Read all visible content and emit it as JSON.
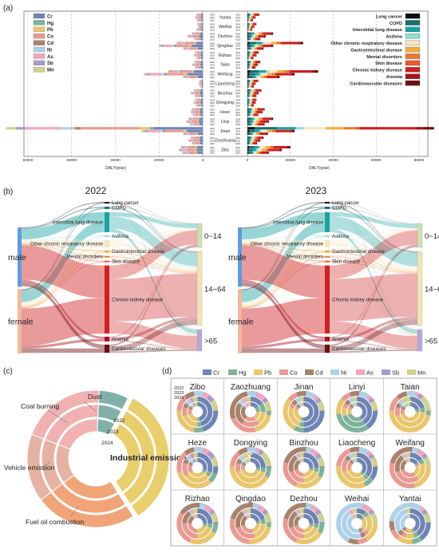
{
  "panels": {
    "a": "(a)",
    "b": "(b)",
    "c": "(c)",
    "d": "(d)"
  },
  "palette": {
    "metals": {
      "Cr": "#6f84b6",
      "Hg": "#7fb29a",
      "Pb": "#e9c56b",
      "Co": "#ea9a92",
      "Cd": "#a8826b",
      "Ni": "#aed1ea",
      "As": "#f2a6bd",
      "Sb": "#a99cc8",
      "Mn": "#cfd18e"
    },
    "diseases": {
      "Lung cancer": "#0c0c0c",
      "COPD": "#1a6f73",
      "Interstitial lung disease": "#1aa3a3",
      "Asthma": "#8fdcd2",
      "Other chronic respiratory disease": "#f3e6c4",
      "Gastrointestinal disease": "#f2ad3d",
      "Mental disorders": "#e77a2e",
      "Skin disease": "#e85a2b",
      "Chronic kidney disease": "#cf2020",
      "Anemia": "#a8101a",
      "Cardiovascular diseases": "#6e0f12"
    }
  },
  "chart_data": [
    {
      "id": "a",
      "type": "bar",
      "orientation": "horizontal",
      "xlabel_left": "DALY(year)",
      "xlabel_right": "DALY(year)",
      "left_ticks": [
        "80000",
        "60000",
        "40000",
        "20000",
        "0"
      ],
      "right_ticks": [
        "0",
        "20000",
        "40000",
        "60000",
        "80000"
      ],
      "xlim": [
        0,
        80000
      ],
      "years": [
        "2024",
        "2023",
        "2022"
      ],
      "cities": [
        "Yantai",
        "Weihai",
        "Dezhou",
        "Qingdao",
        "Rizhao",
        "Taian",
        "Weifang",
        "Liaocheng",
        "Binzhou",
        "Dongying",
        "Heze",
        "Linyi",
        "Jinan",
        "Zaozhuang",
        "Zibo"
      ],
      "legend_left": [
        "Cr",
        "Hg",
        "Pb",
        "Co",
        "Cd",
        "Ni",
        "As",
        "Sb",
        "Mn"
      ],
      "legend_right": [
        "Lung cancer",
        "COPD",
        "Interstitial lung disease",
        "Asthma",
        "Other chronic respiratory disease",
        "Gastrointestinal disease",
        "Mental disorders",
        "Skin disease",
        "Chronic kidney disease",
        "Anemia",
        "Cardiovascular diseases"
      ],
      "left_totals": [
        [
          3000,
          3500,
          2800
        ],
        [
          2500,
          2200,
          3000
        ],
        [
          5000,
          7000,
          4000
        ],
        [
          12000,
          20000,
          9000
        ],
        [
          3500,
          4000,
          3000
        ],
        [
          3800,
          4800,
          3500
        ],
        [
          16000,
          27000,
          9000
        ],
        [
          1500,
          2000,
          1300
        ],
        [
          4000,
          5500,
          3800
        ],
        [
          3500,
          4200,
          3200
        ],
        [
          5000,
          5500,
          4600
        ],
        [
          6500,
          7500,
          6000
        ],
        [
          90000,
          28000,
          9000
        ],
        [
          5500,
          6500,
          5000
        ],
        [
          10000,
          11000,
          9500
        ]
      ],
      "left_metal_shares": [
        0.25,
        0.02,
        0.05,
        0.3,
        0.03,
        0.07,
        0.18,
        0.05,
        0.05
      ],
      "right_totals": [
        [
          5500,
          3800,
          2600
        ],
        [
          4200,
          3200,
          2200
        ],
        [
          12000,
          8500,
          6000
        ],
        [
          26000,
          12000,
          7500
        ],
        [
          5200,
          4200,
          2800
        ],
        [
          6000,
          4800,
          3800
        ],
        [
          33000,
          22000,
          15000
        ],
        [
          5000,
          3800,
          3000
        ],
        [
          6500,
          5200,
          4200
        ],
        [
          4200,
          3800,
          3000
        ],
        [
          8000,
          7000,
          5000
        ],
        [
          12000,
          10000,
          8000
        ],
        [
          87000,
          22000,
          9500
        ],
        [
          7500,
          6000,
          4500
        ],
        [
          20000,
          16000,
          10000
        ]
      ],
      "right_disease_shares": [
        0.04,
        0.12,
        0.1,
        0.04,
        0.12,
        0.1,
        0.06,
        0.02,
        0.3,
        0.04,
        0.06
      ]
    },
    {
      "id": "b",
      "type": "sankey",
      "title_2022": "2022",
      "title_2023": "2023",
      "sexes": [
        "male",
        "female"
      ],
      "sex_shares": [
        0.48,
        0.52
      ],
      "diseases": [
        "Lung cancer",
        "COPD",
        "Interstitial lung disease",
        "Asthma",
        "Other chronic respiratory disease",
        "Gastrointestinal disease",
        "Mental disorders",
        "Skin disease",
        "Chronic kidney disease",
        "Anemia",
        "Cardiovascular diseases"
      ],
      "disease_shares": [
        0.01,
        0.02,
        0.17,
        0.005,
        0.06,
        0.02,
        0.01,
        0.005,
        0.58,
        0.04,
        0.07
      ],
      "ages": [
        "0~14",
        "14~64",
        ">65"
      ],
      "age_shares": [
        0.2,
        0.62,
        0.18
      ]
    },
    {
      "id": "c",
      "type": "pie",
      "style": "nested donut",
      "center_label": "Industrial emission",
      "rings": [
        "2022",
        "2023",
        "2024"
      ],
      "categories": [
        "Dust",
        "Industrial emission",
        "Fuel oil combustion",
        "Vehicle emission",
        "Coal burning"
      ],
      "values": [
        0.07,
        0.33,
        0.24,
        0.16,
        0.2
      ]
    },
    {
      "id": "d",
      "type": "pie",
      "style": "nested donut grid",
      "ring_years": [
        "2022",
        "2023",
        "2024"
      ],
      "legend": [
        "Cr",
        "Hg",
        "Pb",
        "Co",
        "Cd",
        "Ni",
        "As",
        "Sb",
        "Mn"
      ],
      "cities": [
        "Zibo",
        "Zaozhuang",
        "Jinan",
        "Linyi",
        "Taian",
        "Heze",
        "Dongying",
        "Binzhou",
        "Liaocheng",
        "Weifang",
        "Rizhao",
        "Qingdao",
        "Dezhou",
        "Weihai",
        "Yantai"
      ],
      "mixes": [
        [
          0.45,
          0.05,
          0.2,
          0.1,
          0.05,
          0.05,
          0.02,
          0.02,
          0.06
        ],
        [
          0.15,
          0.1,
          0.15,
          0.2,
          0.25,
          0.05,
          0.05,
          0.0,
          0.05
        ],
        [
          0.5,
          0.05,
          0.25,
          0.05,
          0.05,
          0.05,
          0.0,
          0.0,
          0.05
        ],
        [
          0.4,
          0.3,
          0.1,
          0.05,
          0.05,
          0.05,
          0.0,
          0.0,
          0.05
        ],
        [
          0.2,
          0.05,
          0.45,
          0.1,
          0.05,
          0.05,
          0.0,
          0.0,
          0.1
        ],
        [
          0.3,
          0.05,
          0.3,
          0.15,
          0.05,
          0.05,
          0.02,
          0.03,
          0.05
        ],
        [
          0.25,
          0.05,
          0.4,
          0.1,
          0.05,
          0.05,
          0.0,
          0.0,
          0.1
        ],
        [
          0.25,
          0.05,
          0.2,
          0.2,
          0.2,
          0.02,
          0.03,
          0.0,
          0.05
        ],
        [
          0.35,
          0.05,
          0.3,
          0.15,
          0.05,
          0.05,
          0.0,
          0.0,
          0.05
        ],
        [
          0.15,
          0.05,
          0.2,
          0.3,
          0.2,
          0.02,
          0.03,
          0.0,
          0.05
        ],
        [
          0.25,
          0.05,
          0.2,
          0.25,
          0.15,
          0.02,
          0.03,
          0.0,
          0.05
        ],
        [
          0.2,
          0.05,
          0.2,
          0.25,
          0.2,
          0.02,
          0.03,
          0.0,
          0.05
        ],
        [
          0.25,
          0.05,
          0.2,
          0.2,
          0.2,
          0.02,
          0.03,
          0.0,
          0.05
        ],
        [
          0.1,
          0.05,
          0.2,
          0.05,
          0.05,
          0.45,
          0.05,
          0.0,
          0.05
        ],
        [
          0.4,
          0.05,
          0.1,
          0.05,
          0.05,
          0.3,
          0.0,
          0.0,
          0.05
        ]
      ]
    }
  ]
}
